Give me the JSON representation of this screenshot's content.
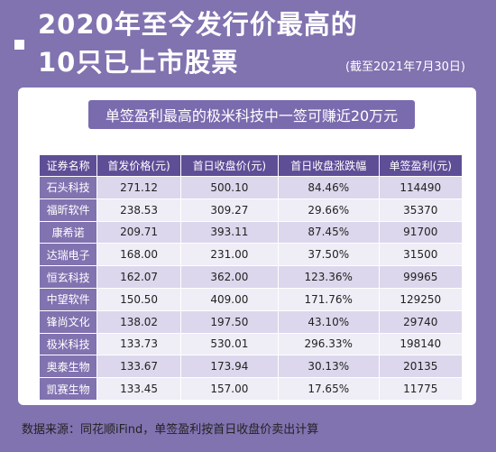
{
  "title": {
    "line1": "2020年至今发行价最高的",
    "line2": "10只已上市股票"
  },
  "date_note": "(截至2021年7月30日)",
  "banner": "单签盈利最高的极米科技中一签可赚近20万元",
  "table": {
    "headers": [
      "证券名称",
      "首发价格(元)",
      "首日收盘价(元)",
      "首日收盘涨跌幅",
      "单签盈利(元)"
    ],
    "rows": [
      [
        "石头科技",
        "271.12",
        "500.10",
        "84.46%",
        "114490"
      ],
      [
        "福昕软件",
        "238.53",
        "309.27",
        "29.66%",
        "35370"
      ],
      [
        "康希诺",
        "209.71",
        "393.11",
        "87.45%",
        "91700"
      ],
      [
        "达瑞电子",
        "168.00",
        "231.00",
        "37.50%",
        "31500"
      ],
      [
        "恒玄科技",
        "162.07",
        "362.00",
        "123.36%",
        "99965"
      ],
      [
        "中望软件",
        "150.50",
        "409.00",
        "171.76%",
        "129250"
      ],
      [
        "锋尚文化",
        "138.02",
        "197.50",
        "43.10%",
        "29740"
      ],
      [
        "极米科技",
        "133.73",
        "530.01",
        "296.33%",
        "198140"
      ],
      [
        "奥泰生物",
        "133.67",
        "173.94",
        "30.13%",
        "20135"
      ],
      [
        "凯赛生物",
        "133.45",
        "157.00",
        "17.65%",
        "11775"
      ]
    ]
  },
  "footer": "数据来源：同花顺iFind，单签盈利按首日收盘价卖出计算",
  "colors": {
    "background": "#8172b0",
    "header": "#5e4e96",
    "banner": "#7a6aae",
    "row_odd": "#dcd7ec",
    "row_even": "#efedf6"
  }
}
